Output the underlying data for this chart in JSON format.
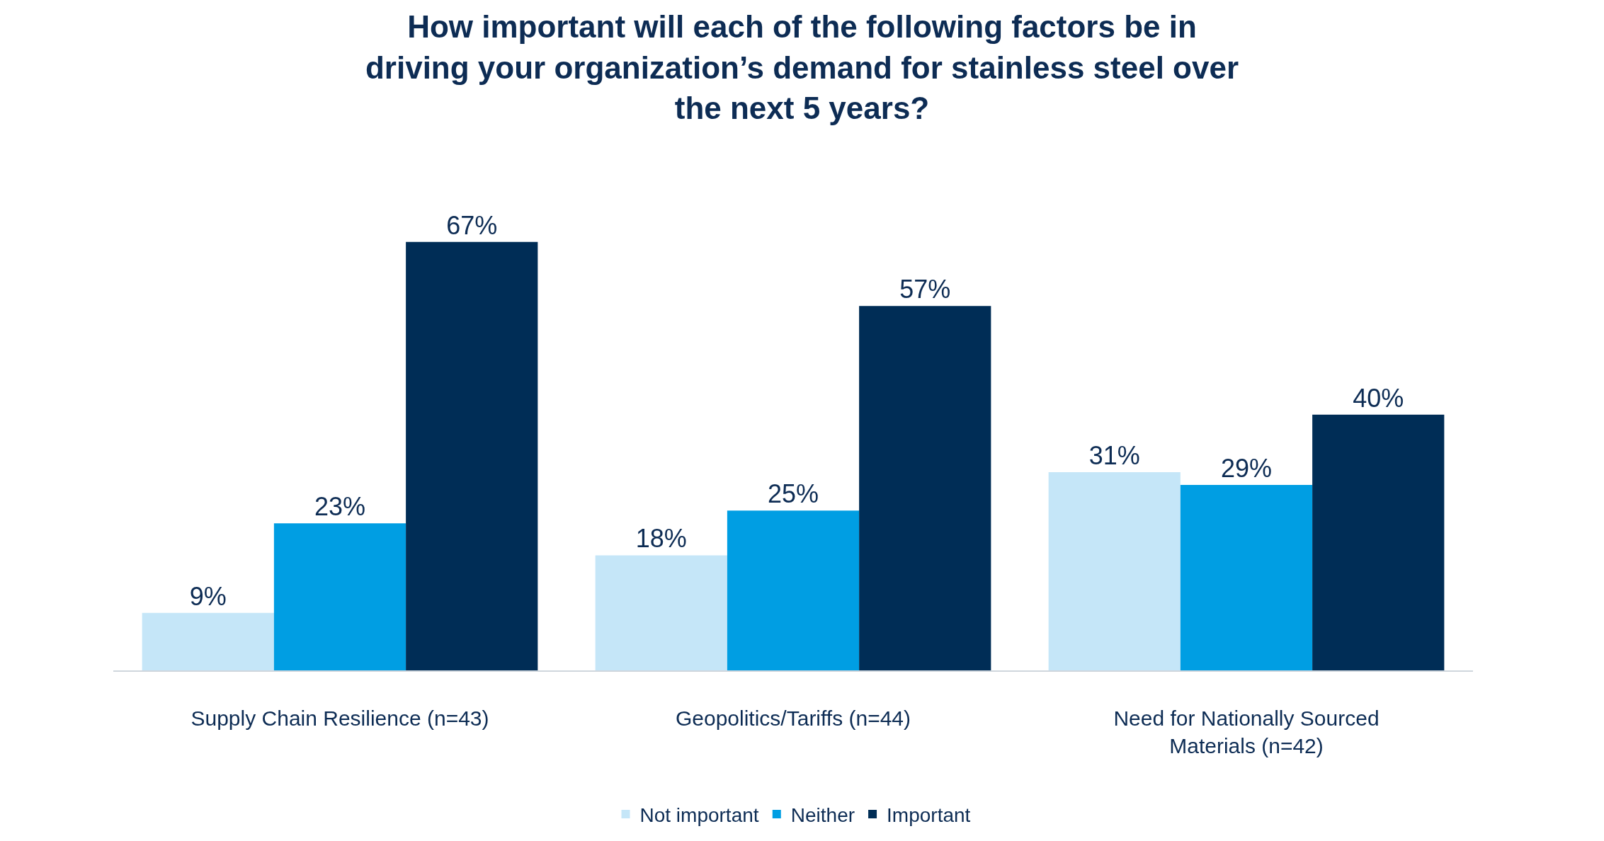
{
  "chart_data": {
    "type": "bar",
    "title": "How important will each of the following factors be in\ndriving your organization’s demand for stainless steel over\nthe next 5 years?",
    "categories": [
      "Supply Chain Resilience (n=43)",
      "Geopolitics/Tariffs (n=44)",
      "Need for Nationally Sourced\nMaterials (n=42)"
    ],
    "series": [
      {
        "name": "Not important",
        "color": "#c5e6f8",
        "values": [
          9,
          18,
          31
        ],
        "value_labels": [
          "9%",
          "18%",
          "31%"
        ]
      },
      {
        "name": "Neither",
        "color": "#009ee3",
        "values": [
          23,
          25,
          29
        ],
        "value_labels": [
          "23%",
          "25%",
          "29%"
        ]
      },
      {
        "name": "Important",
        "color": "#002d56",
        "values": [
          67,
          57,
          40
        ],
        "value_labels": [
          "67%",
          "57%",
          "40%"
        ]
      }
    ],
    "legend": "bottom"
  }
}
